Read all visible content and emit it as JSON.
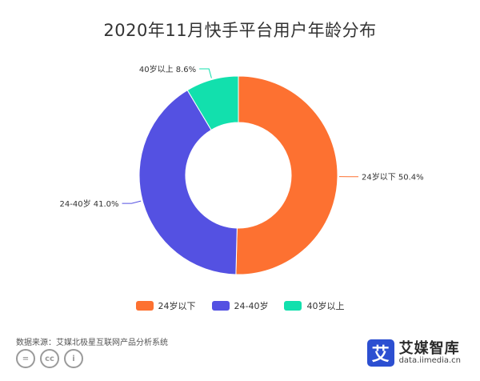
{
  "title": "2020年11月快手平台用户年龄分布",
  "chart_data": {
    "type": "pie",
    "title": "2020年11月快手平台用户年龄分布",
    "donut": true,
    "legend_position": "bottom",
    "categories": [
      "24岁以下",
      "24-40岁",
      "40岁以上"
    ],
    "values": [
      50.4,
      41.0,
      8.6
    ],
    "unit": "%",
    "colors": [
      "#fd7131",
      "#5451e2",
      "#12e0ad"
    ],
    "data_labels": [
      "24岁以下 50.4%",
      "24-40岁 41.0%",
      "40岁以上 8.6%"
    ]
  },
  "legend": [
    {
      "label": "24岁以下",
      "color": "#fd7131"
    },
    {
      "label": "24-40岁",
      "color": "#5451e2"
    },
    {
      "label": "40岁以上",
      "color": "#12e0ad"
    }
  ],
  "source": "数据来源：艾媒北极星互联网产品分析系统",
  "license_icons": [
    "equal-icon",
    "cc-icon",
    "person-icon"
  ],
  "license_glyphs": [
    "=",
    "cc",
    "i"
  ],
  "logo": {
    "mark": "艾",
    "name": "艾媒智库",
    "url": "data.iimedia.cn",
    "color": "#2c4fd1"
  }
}
